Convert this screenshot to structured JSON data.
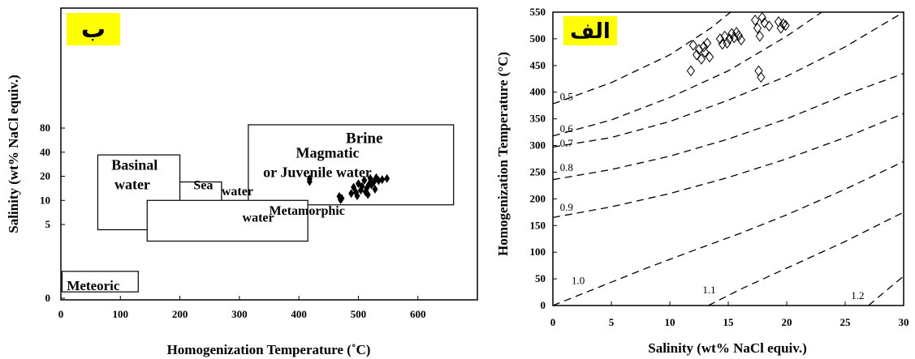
{
  "chart_data": [
    {
      "id": "left",
      "type": "scatter",
      "badge": "ب",
      "xlabel": "Homogenization Temperature (˚C)",
      "ylabel": "Salinity (wt% NaCl equiv.)",
      "xticks": [
        "0",
        "100",
        "200",
        "300",
        "400",
        "500",
        "600"
      ],
      "yticks": [
        {
          "label": "0",
          "v": 0.6
        },
        {
          "label": "5",
          "v": 5
        },
        {
          "label": "10",
          "v": 10
        },
        {
          "label": "20",
          "v": 20
        },
        {
          "label": "40",
          "v": 40
        },
        {
          "label": "80",
          "v": 80
        }
      ],
      "xlim": [
        0,
        700
      ],
      "scale": "log",
      "fields": [
        {
          "name": "Brine",
          "lines": [
            "Brine"
          ],
          "x": [
            375,
            645
          ],
          "y": [
            48,
            75
          ],
          "label_at": [
            510,
            61
          ],
          "size": 19
        },
        {
          "name": "Magmatic or Juvenile water",
          "lines": [
            "Magmatic",
            "or Juvenile water"
          ],
          "x": [
            315,
            660
          ],
          "y": [
            8.8,
            88
          ],
          "label_at": [
            435,
            30
          ],
          "size": 18
        },
        {
          "name": "Basinal water",
          "lines": [
            "Basinal",
            "water"
          ],
          "x": [
            62,
            200
          ],
          "y": [
            4.3,
            37
          ],
          "label_at": [
            130,
            21
          ],
          "size": 18
        },
        {
          "name": "Sea water",
          "lines": [
            "Sea",
            "water"
          ],
          "x": [
            200,
            270
          ],
          "y": [
            4.9,
            17
          ],
          "label_at": [
            [
              223,
              13.8
            ],
            [
              270,
              11.6
            ]
          ],
          "size": 16
        },
        {
          "name": "Metamorphic water",
          "lines": [
            "Metamorphic",
            "water"
          ],
          "x": [
            145,
            415
          ],
          "y": [
            3.1,
            10
          ],
          "label_at": [
            [
              350,
              6.6
            ],
            [
              305,
              5.4
            ]
          ],
          "size": 16
        },
        {
          "name": "Meteoric",
          "lines": [
            "Meteoric"
          ],
          "x": [
            2,
            130
          ],
          "y": [
            0.72,
            1.3
          ],
          "label_at": [
            10,
            0.87
          ],
          "size": 17
        }
      ],
      "points": [
        {
          "t": 418,
          "s": 18.6
        },
        {
          "t": 418,
          "s": 17.2
        },
        {
          "t": 468,
          "s": 11.2
        },
        {
          "t": 472,
          "s": 10.6
        },
        {
          "t": 470,
          "s": 10.2
        },
        {
          "t": 488,
          "s": 12.2
        },
        {
          "t": 492,
          "s": 14.6
        },
        {
          "t": 496,
          "s": 12.6
        },
        {
          "t": 500,
          "s": 16.2
        },
        {
          "t": 504,
          "s": 13.4
        },
        {
          "t": 506,
          "s": 15.0
        },
        {
          "t": 510,
          "s": 17.8
        },
        {
          "t": 512,
          "s": 12.8
        },
        {
          "t": 514,
          "s": 14.2
        },
        {
          "t": 518,
          "s": 16.0
        },
        {
          "t": 520,
          "s": 18.8
        },
        {
          "t": 522,
          "s": 15.6
        },
        {
          "t": 526,
          "s": 17.0
        },
        {
          "t": 530,
          "s": 19.2
        },
        {
          "t": 534,
          "s": 17.6
        },
        {
          "t": 540,
          "s": 18.2
        },
        {
          "t": 548,
          "s": 18.8
        },
        {
          "t": 528,
          "s": 13.8
        },
        {
          "t": 516,
          "s": 11.8
        },
        {
          "t": 498,
          "s": 11.4
        }
      ]
    },
    {
      "id": "right",
      "type": "scatter",
      "badge": "الف",
      "xlabel": "Salinity (wt% NaCl equiv.)",
      "ylabel": "Homogenization Temperature (°C)",
      "xticks": [
        0,
        5,
        10,
        15,
        20,
        25,
        30
      ],
      "yticks": [
        0,
        50,
        100,
        150,
        200,
        250,
        300,
        350,
        400,
        450,
        500,
        550
      ],
      "xlim": [
        0,
        30
      ],
      "ylim": [
        0,
        550
      ],
      "density_contours": [
        {
          "label": "0.5",
          "points": [
            [
              0,
              378
            ],
            [
              5,
              418
            ],
            [
              10,
              470
            ],
            [
              13.5,
              520
            ],
            [
              15.2,
              550
            ]
          ],
          "label_at": [
            0.6,
            385
          ],
          "label_size": 13
        },
        {
          "label": "0.6",
          "points": [
            [
              0,
              318
            ],
            [
              5,
              348
            ],
            [
              10,
              390
            ],
            [
              15,
              440
            ],
            [
              20,
              505
            ],
            [
              23,
              550
            ]
          ],
          "label_at": [
            0.6,
            325
          ],
          "label_size": 13
        },
        {
          "label": "0.7",
          "points": [
            [
              0,
              297
            ],
            [
              5,
              315
            ],
            [
              10,
              345
            ],
            [
              15,
              385
            ],
            [
              20,
              430
            ],
            [
              25,
              485
            ],
            [
              30,
              550
            ]
          ],
          "label_at": [
            0.6,
            298
          ],
          "label_size": 13
        },
        {
          "label": "0.8",
          "points": [
            [
              0,
              236
            ],
            [
              5,
              255
            ],
            [
              10,
              280
            ],
            [
              15,
              312
            ],
            [
              20,
              350
            ],
            [
              25,
              395
            ],
            [
              30,
              435
            ]
          ],
          "label_at": [
            0.6,
            252
          ],
          "label_size": 13
        },
        {
          "label": "0.9",
          "points": [
            [
              0,
              165
            ],
            [
              5,
              185
            ],
            [
              10,
              210
            ],
            [
              15,
              240
            ],
            [
              20,
              275
            ],
            [
              25,
              315
            ],
            [
              30,
              360
            ]
          ],
          "label_at": [
            0.6,
            178
          ],
          "label_size": 13
        },
        {
          "label": "1.0",
          "points": [
            [
              0,
              0
            ],
            [
              4,
              35
            ],
            [
              8,
              70
            ],
            [
              12,
              103
            ],
            [
              16,
              135
            ],
            [
              20,
              170
            ],
            [
              25,
              218
            ],
            [
              30,
              270
            ]
          ],
          "label_at": [
            1.6,
            40
          ],
          "label_size": 13
        },
        {
          "label": "1.1",
          "points": [
            [
              13.3,
              0
            ],
            [
              16,
              30
            ],
            [
              20,
              70
            ],
            [
              25,
              120
            ],
            [
              30,
              175
            ]
          ],
          "label_at": [
            12.8,
            23
          ],
          "label_size": 11
        },
        {
          "label": "1.2",
          "points": [
            [
              27,
              0
            ],
            [
              28.5,
              28
            ],
            [
              30,
              55
            ]
          ],
          "label_at": [
            25.5,
            12
          ],
          "label_size": 11
        }
      ],
      "points": [
        {
          "s": 11.8,
          "t": 440
        },
        {
          "s": 12.0,
          "t": 488
        },
        {
          "s": 12.3,
          "t": 470
        },
        {
          "s": 12.5,
          "t": 480
        },
        {
          "s": 12.7,
          "t": 462
        },
        {
          "s": 12.9,
          "t": 485
        },
        {
          "s": 13.0,
          "t": 475
        },
        {
          "s": 13.2,
          "t": 492
        },
        {
          "s": 13.4,
          "t": 466
        },
        {
          "s": 14.3,
          "t": 500
        },
        {
          "s": 14.5,
          "t": 490
        },
        {
          "s": 14.7,
          "t": 505
        },
        {
          "s": 14.9,
          "t": 492
        },
        {
          "s": 15.1,
          "t": 500
        },
        {
          "s": 15.3,
          "t": 510
        },
        {
          "s": 15.5,
          "t": 502
        },
        {
          "s": 15.7,
          "t": 512
        },
        {
          "s": 15.9,
          "t": 506
        },
        {
          "s": 16.1,
          "t": 498
        },
        {
          "s": 17.3,
          "t": 535
        },
        {
          "s": 17.5,
          "t": 520
        },
        {
          "s": 17.7,
          "t": 505
        },
        {
          "s": 17.9,
          "t": 540
        },
        {
          "s": 18.1,
          "t": 530
        },
        {
          "s": 18.5,
          "t": 524
        },
        {
          "s": 19.3,
          "t": 532
        },
        {
          "s": 19.5,
          "t": 520
        },
        {
          "s": 19.7,
          "t": 528
        },
        {
          "s": 19.9,
          "t": 525
        },
        {
          "s": 17.6,
          "t": 440
        },
        {
          "s": 17.8,
          "t": 428
        }
      ]
    }
  ]
}
